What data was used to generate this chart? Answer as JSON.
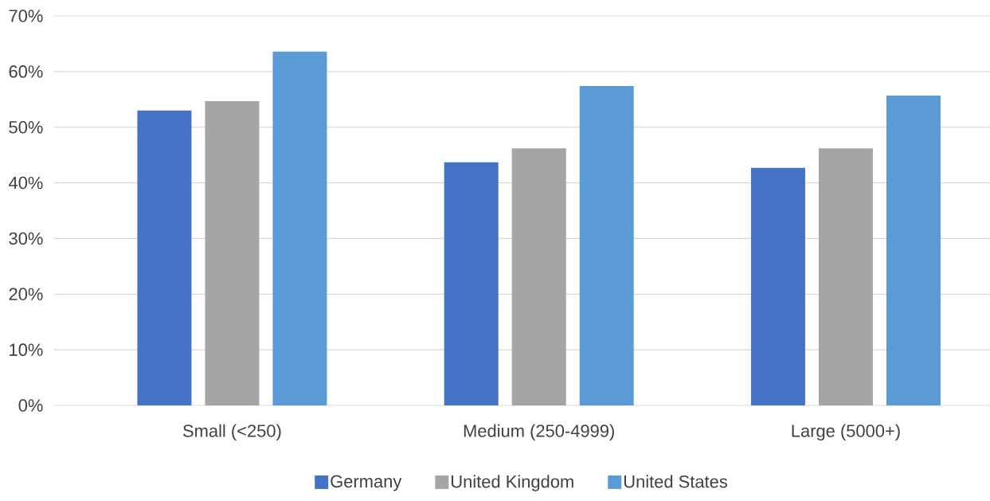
{
  "chart_data": {
    "type": "bar",
    "categories": [
      "Small (<250)",
      "Medium (250-4999)",
      "Large (5000+)"
    ],
    "series": [
      {
        "name": "Germany",
        "color": "#4472c4",
        "values": [
          53,
          43.7,
          42.7
        ]
      },
      {
        "name": "United Kingdom",
        "color": "#a5a5a5",
        "values": [
          54.7,
          46.2,
          46.2
        ]
      },
      {
        "name": "United States",
        "color": "#5b9bd5",
        "values": [
          63.6,
          57.4,
          55.7
        ]
      }
    ],
    "ylim": [
      0,
      70
    ],
    "yticks": [
      {
        "value": 0,
        "label": "0%"
      },
      {
        "value": 10,
        "label": "10%"
      },
      {
        "value": 20,
        "label": "20%"
      },
      {
        "value": 30,
        "label": "30%"
      },
      {
        "value": 40,
        "label": "40%"
      },
      {
        "value": 50,
        "label": "50%"
      },
      {
        "value": 60,
        "label": "60%"
      },
      {
        "value": 70,
        "label": "70%"
      }
    ],
    "grid": "y",
    "legend": "bottom"
  }
}
